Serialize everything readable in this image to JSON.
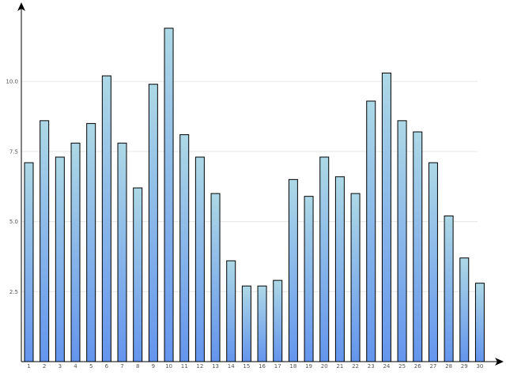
{
  "chart_data": {
    "type": "bar",
    "title": "",
    "xlabel": "",
    "ylabel": "",
    "categories": [
      "1",
      "2",
      "3",
      "4",
      "5",
      "6",
      "7",
      "8",
      "9",
      "10",
      "11",
      "12",
      "13",
      "14",
      "15",
      "16",
      "17",
      "18",
      "19",
      "20",
      "21",
      "22",
      "23",
      "24",
      "25",
      "26",
      "27",
      "28",
      "29",
      "30"
    ],
    "values": [
      7.1,
      8.6,
      7.3,
      7.8,
      8.5,
      10.2,
      7.8,
      6.2,
      9.9,
      11.9,
      8.1,
      7.3,
      6.0,
      3.6,
      2.7,
      2.7,
      2.9,
      6.5,
      5.9,
      7.3,
      6.6,
      6.0,
      9.3,
      10.3,
      8.6,
      8.2,
      7.1,
      5.2,
      3.7,
      2.8
    ],
    "ylim": [
      0,
      12.4
    ],
    "yticks": [
      2.5,
      5.0,
      7.5,
      10.0
    ],
    "ytick_labels": [
      "2.5",
      "5.0",
      "7.5",
      "10.0"
    ],
    "grid": true,
    "bar_gradient": {
      "top": "#add8e6",
      "bottom": "#6495ed"
    },
    "bar_stroke": "#000000"
  }
}
